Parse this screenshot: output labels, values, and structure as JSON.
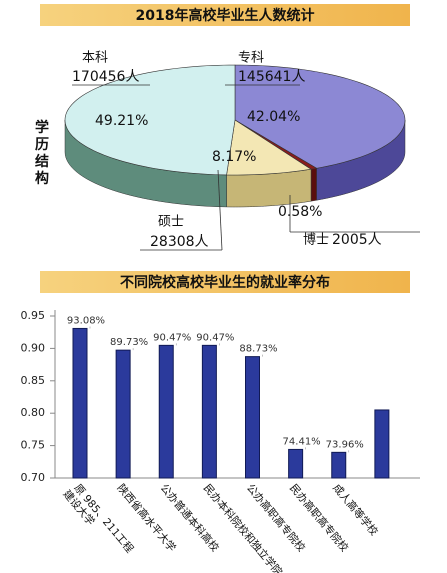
{
  "charts": [
    {
      "type": "pie3d",
      "title": "2018年高校毕业生人数统计",
      "side_label": "学历结构",
      "categories": [
        "专科",
        "博士",
        "硕士",
        "本科"
      ],
      "values": [
        42.04,
        0.58,
        8.17,
        49.21
      ],
      "value_labels": [
        "42.04%",
        "0.58%",
        "8.17%",
        "49.21%"
      ],
      "counts": [
        145641,
        2005,
        28308,
        170456
      ],
      "count_labels": [
        "145641人",
        "2005人",
        "28308人",
        "170456人"
      ],
      "colors": [
        "#8c88d4",
        "#8a1c1c",
        "#f3e7b4",
        "#d2f0ef"
      ],
      "side_colors": [
        "#4d4898",
        "#5a0e0e",
        "#c6b676",
        "#5e8c7c"
      ]
    },
    {
      "type": "bar",
      "title": "不同院校高校毕业生的就业率分布",
      "categories": [
        [
          "原 985、211工程",
          "建设大学"
        ],
        [
          "陕西省高水平大学"
        ],
        [
          "公办普通本科高校"
        ],
        [
          "民办本科院校和独立学院"
        ],
        [
          "公办高职高专院校"
        ],
        [
          "民办高职高专院校"
        ],
        [
          "成人高等学校"
        ],
        null
      ],
      "values": [
        0.9308,
        0.8973,
        0.9047,
        0.9047,
        0.8873,
        0.7441,
        0.7396,
        0.805
      ],
      "value_labels": [
        "93.08%",
        "89.73%",
        "90.47%",
        "90.47%",
        "88.73%",
        "74.41%",
        "73.96%",
        null
      ],
      "color": "#2b3a9c",
      "ylim": [
        0.7,
        0.95
      ],
      "yticks": [
        {
          "value": 0.7,
          "label": "0.70"
        },
        {
          "value": 0.75,
          "label": "0.75"
        },
        {
          "value": 0.8,
          "label": "0.80"
        },
        {
          "value": 0.85,
          "label": "0.85"
        },
        {
          "value": 0.9,
          "label": "0.90"
        },
        {
          "value": 0.95,
          "label": "0.95"
        }
      ]
    }
  ]
}
